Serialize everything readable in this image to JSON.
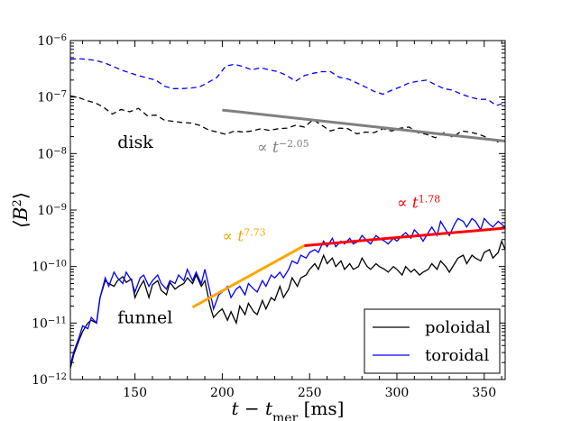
{
  "chart_data": {
    "type": "line",
    "title": "",
    "xlabel": "t − t",
    "xlabel_sub": "mer",
    "xlabel_unit": "[ms]",
    "ylabel": "⟨B",
    "ylabel_sup": "2",
    "ylabel_close": "⟩",
    "xlim": [
      113,
      362
    ],
    "ylim_exp": [
      -12,
      -6
    ],
    "yscale": "log",
    "xticks": [
      150,
      200,
      250,
      300,
      350
    ],
    "yticks": [
      {
        "base": "10",
        "exp": "−6",
        "value": -6
      },
      {
        "base": "10",
        "exp": "−7",
        "value": -7
      },
      {
        "base": "10",
        "exp": "−8",
        "value": -8
      },
      {
        "base": "10",
        "exp": "−9",
        "value": -9
      },
      {
        "base": "10",
        "exp": "−10",
        "value": -10
      },
      {
        "base": "10",
        "exp": "−11",
        "value": -11
      },
      {
        "base": "10",
        "exp": "−12",
        "value": -12
      }
    ],
    "series": [
      {
        "name": "disk-poloidal",
        "color": "#000000",
        "dash": "6,4",
        "x": [
          113,
          118,
          122,
          127,
          132,
          137,
          142,
          147,
          152,
          157,
          162,
          167,
          172,
          177,
          182,
          187,
          192,
          197,
          202,
          207,
          212,
          217,
          222,
          227,
          232,
          237,
          242,
          247,
          252,
          257,
          262,
          267,
          272,
          277,
          282,
          287,
          292,
          297,
          302,
          307,
          312,
          317,
          322,
          327,
          332,
          337,
          342,
          347,
          352,
          357,
          362
        ],
        "log_y": [
          -6.98,
          -7.01,
          -7.06,
          -7.1,
          -7.18,
          -7.3,
          -7.22,
          -7.26,
          -7.2,
          -7.33,
          -7.32,
          -7.41,
          -7.43,
          -7.45,
          -7.46,
          -7.5,
          -7.58,
          -7.62,
          -7.66,
          -7.6,
          -7.62,
          -7.6,
          -7.56,
          -7.59,
          -7.56,
          -7.55,
          -7.5,
          -7.53,
          -7.4,
          -7.5,
          -7.6,
          -7.55,
          -7.56,
          -7.65,
          -7.62,
          -7.63,
          -7.56,
          -7.6,
          -7.55,
          -7.53,
          -7.63,
          -7.66,
          -7.72,
          -7.63,
          -7.71,
          -7.6,
          -7.62,
          -7.66,
          -7.72,
          -7.8,
          -7.74
        ]
      },
      {
        "name": "disk-toroidal",
        "color": "#0000ff",
        "dash": "6,4",
        "x": [
          113,
          118,
          122,
          127,
          132,
          137,
          142,
          147,
          152,
          157,
          162,
          167,
          172,
          177,
          182,
          187,
          192,
          197,
          202,
          207,
          212,
          217,
          222,
          227,
          232,
          237,
          242,
          247,
          252,
          257,
          262,
          267,
          272,
          277,
          282,
          287,
          292,
          297,
          302,
          307,
          312,
          317,
          322,
          327,
          332,
          337,
          342,
          347,
          352,
          357,
          362
        ],
        "log_y": [
          -6.33,
          -6.32,
          -6.33,
          -6.35,
          -6.39,
          -6.45,
          -6.52,
          -6.57,
          -6.62,
          -6.66,
          -6.7,
          -6.81,
          -6.85,
          -6.85,
          -6.84,
          -6.82,
          -6.74,
          -6.65,
          -6.45,
          -6.42,
          -6.46,
          -6.52,
          -6.48,
          -6.52,
          -6.55,
          -6.62,
          -6.72,
          -6.62,
          -6.58,
          -6.55,
          -6.55,
          -6.65,
          -6.68,
          -6.75,
          -6.82,
          -6.9,
          -6.95,
          -6.88,
          -6.82,
          -6.75,
          -6.72,
          -6.7,
          -6.78,
          -6.85,
          -6.88,
          -6.95,
          -7.0,
          -7.04,
          -7.04,
          -7.15,
          -7.1
        ]
      },
      {
        "name": "poloidal",
        "color": "#000000",
        "dash": "",
        "x": [
          113,
          115,
          118,
          120,
          123,
          125,
          128,
          130,
          133,
          135,
          138,
          140,
          143,
          145,
          148,
          150,
          153,
          155,
          158,
          160,
          163,
          165,
          168,
          170,
          173,
          175,
          178,
          180,
          183,
          185,
          188,
          190,
          193,
          195,
          198,
          200,
          203,
          205,
          208,
          210,
          213,
          215,
          218,
          220,
          223,
          225,
          228,
          230,
          233,
          235,
          238,
          240,
          243,
          245,
          248,
          250,
          253,
          255,
          258,
          260,
          263,
          265,
          268,
          270,
          273,
          275,
          278,
          280,
          283,
          285,
          288,
          290,
          293,
          295,
          298,
          300,
          303,
          305,
          308,
          310,
          313,
          315,
          318,
          320,
          323,
          325,
          328,
          330,
          333,
          335,
          338,
          340,
          343,
          345,
          348,
          350,
          353,
          355,
          358,
          360,
          362
        ],
        "log_y": [
          -11.8,
          -11.55,
          -11.3,
          -11.15,
          -11.0,
          -10.95,
          -11.0,
          -10.55,
          -10.25,
          -10.3,
          -10.35,
          -10.25,
          -10.18,
          -10.28,
          -10.22,
          -10.55,
          -10.35,
          -10.25,
          -10.55,
          -10.32,
          -10.25,
          -10.42,
          -10.5,
          -10.28,
          -10.4,
          -10.35,
          -10.3,
          -10.2,
          -10.3,
          -10.15,
          -10.35,
          -10.25,
          -10.7,
          -10.9,
          -10.8,
          -10.75,
          -10.95,
          -10.8,
          -11.0,
          -10.7,
          -10.85,
          -10.65,
          -10.8,
          -10.85,
          -10.6,
          -10.75,
          -10.55,
          -10.6,
          -10.35,
          -10.55,
          -10.4,
          -10.2,
          -10.35,
          -10.2,
          -10.15,
          -10.05,
          -9.95,
          -10.05,
          -9.8,
          -9.95,
          -9.85,
          -10.0,
          -9.9,
          -10.05,
          -9.95,
          -10.05,
          -10.0,
          -9.85,
          -10.0,
          -10.05,
          -9.95,
          -10.0,
          -10.05,
          -10.1,
          -10.0,
          -10.05,
          -10.15,
          -10.0,
          -10.1,
          -10.05,
          -10.15,
          -10.1,
          -10.05,
          -9.95,
          -10.05,
          -9.9,
          -10.0,
          -10.1,
          -9.95,
          -9.85,
          -9.8,
          -9.95,
          -9.8,
          -9.85,
          -9.9,
          -9.75,
          -9.7,
          -9.85,
          -9.75,
          -9.55,
          -9.7
        ]
      },
      {
        "name": "toroidal",
        "color": "#0000ff",
        "dash": "",
        "x": [
          113,
          115,
          118,
          120,
          123,
          125,
          128,
          130,
          133,
          135,
          138,
          140,
          143,
          145,
          148,
          150,
          153,
          155,
          158,
          160,
          163,
          165,
          168,
          170,
          173,
          175,
          178,
          180,
          183,
          185,
          188,
          190,
          193,
          195,
          198,
          200,
          203,
          205,
          208,
          210,
          213,
          215,
          218,
          220,
          223,
          225,
          228,
          230,
          233,
          235,
          238,
          240,
          243,
          245,
          248,
          250,
          253,
          255,
          258,
          260,
          263,
          265,
          268,
          270,
          273,
          275,
          278,
          280,
          283,
          285,
          288,
          290,
          293,
          295,
          298,
          300,
          303,
          305,
          308,
          310,
          313,
          315,
          318,
          320,
          323,
          325,
          328,
          330,
          333,
          335,
          338,
          340,
          343,
          345,
          348,
          350,
          353,
          355,
          358,
          360,
          362
        ],
        "log_y": [
          -11.75,
          -11.5,
          -11.25,
          -11.05,
          -11.1,
          -10.9,
          -11.0,
          -10.55,
          -10.2,
          -10.35,
          -10.1,
          -10.2,
          -10.3,
          -10.1,
          -10.25,
          -10.45,
          -10.2,
          -10.15,
          -10.35,
          -10.25,
          -10.15,
          -10.3,
          -10.4,
          -10.25,
          -10.3,
          -10.15,
          -10.25,
          -10.05,
          -10.25,
          -10.1,
          -10.3,
          -10.05,
          -10.45,
          -10.75,
          -10.5,
          -10.45,
          -10.35,
          -10.55,
          -10.4,
          -10.35,
          -10.5,
          -10.3,
          -10.4,
          -10.45,
          -10.25,
          -10.35,
          -10.15,
          -10.2,
          -10.1,
          -10.2,
          -10.05,
          -9.9,
          -9.95,
          -9.8,
          -9.85,
          -9.75,
          -9.7,
          -9.75,
          -9.55,
          -9.65,
          -9.5,
          -9.65,
          -9.55,
          -9.6,
          -9.5,
          -9.6,
          -9.55,
          -9.45,
          -9.55,
          -9.6,
          -9.45,
          -9.5,
          -9.55,
          -9.6,
          -9.5,
          -9.55,
          -9.45,
          -9.4,
          -9.5,
          -9.35,
          -9.45,
          -9.55,
          -9.4,
          -9.3,
          -9.45,
          -9.2,
          -9.35,
          -9.45,
          -9.25,
          -9.15,
          -9.2,
          -9.3,
          -9.15,
          -9.2,
          -9.35,
          -9.15,
          -9.25,
          -9.3,
          -9.2,
          -9.25,
          -9.3
        ]
      }
    ],
    "fits": [
      {
        "name": "fit-disk",
        "color": "#808080",
        "x": [
          200,
          362
        ],
        "log_y": [
          -7.23,
          -7.78
        ],
        "label": "∝ t",
        "exp": "−2.05",
        "label_x": 220,
        "label_y": -7.98
      },
      {
        "name": "fit-funnel-early",
        "color": "#ffa500",
        "x": [
          183,
          247
        ],
        "log_y": [
          -10.72,
          -9.63
        ],
        "label": "∝ t",
        "exp": "7.73",
        "label_x": 200,
        "label_y": -9.55
      },
      {
        "name": "fit-funnel-late",
        "color": "#ff0000",
        "x": [
          247,
          362
        ],
        "log_y": [
          -9.63,
          -9.32
        ],
        "label": "∝ t",
        "exp": "1.78",
        "label_x": 300,
        "label_y": -8.96
      }
    ],
    "annotations": [
      {
        "text": "disk",
        "x": 140,
        "log_y": -7.9
      },
      {
        "text": "funnel",
        "x": 140,
        "log_y": -11.0
      }
    ],
    "legend": {
      "placement": "bottom-right",
      "entries": [
        {
          "label": "poloidal",
          "color": "#000000"
        },
        {
          "label": "toroidal",
          "color": "#0000ff"
        }
      ]
    }
  }
}
